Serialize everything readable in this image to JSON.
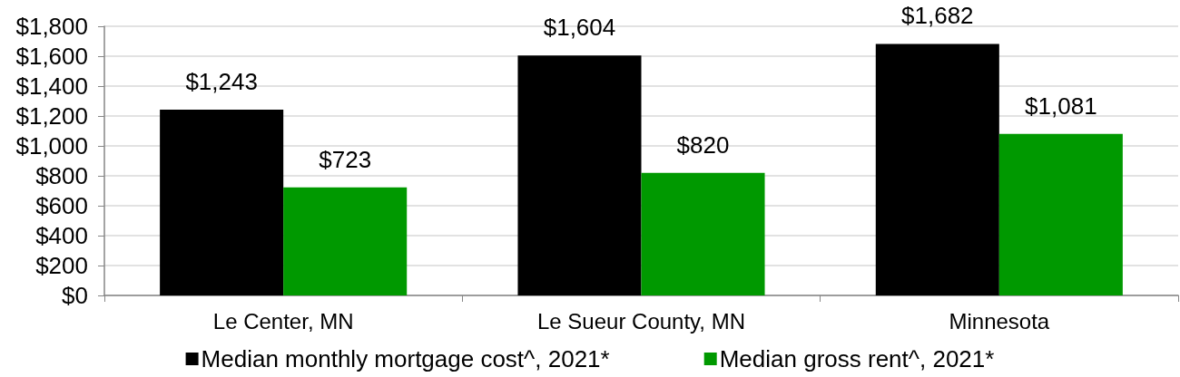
{
  "chart_data": {
    "type": "bar",
    "categories": [
      "Le Center, MN",
      "Le Sueur County, MN",
      "Minnesota"
    ],
    "series": [
      {
        "name": "Median monthly mortgage cost^, 2021*",
        "color": "#000000",
        "values": [
          1243,
          1604,
          1682
        ],
        "value_labels": [
          "$1,243",
          "$1,604",
          "$1,682"
        ]
      },
      {
        "name": "Median gross rent^, 2021*",
        "color": "#009900",
        "values": [
          723,
          820,
          1081
        ],
        "value_labels": [
          "$723",
          "$820",
          "$1,081"
        ]
      }
    ],
    "ylim": [
      0,
      1800
    ],
    "yticks": [
      {
        "value": 0,
        "label": "$0"
      },
      {
        "value": 200,
        "label": "$200"
      },
      {
        "value": 400,
        "label": "$400"
      },
      {
        "value": 600,
        "label": "$600"
      },
      {
        "value": 800,
        "label": "$800"
      },
      {
        "value": 1000,
        "label": "$1,000"
      },
      {
        "value": 1200,
        "label": "$1,200"
      },
      {
        "value": 1400,
        "label": "$1,400"
      },
      {
        "value": 1600,
        "label": "$1,600"
      },
      {
        "value": 1800,
        "label": "$1,800"
      }
    ],
    "grid": "y",
    "legend": "bottom"
  }
}
